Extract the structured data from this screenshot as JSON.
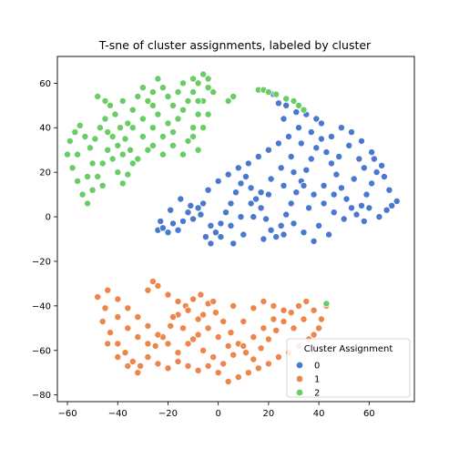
{
  "chart_data": {
    "type": "scatter",
    "title": "T-sne of cluster assignments, labeled by cluster",
    "xlabel": "",
    "ylabel": "",
    "xlim": [
      -64,
      78
    ],
    "ylim": [
      -83,
      72
    ],
    "xticks": [
      -60,
      -40,
      -20,
      0,
      20,
      40,
      60
    ],
    "yticks": [
      -80,
      -60,
      -40,
      -20,
      0,
      20,
      40,
      60
    ],
    "grid": false,
    "legend": {
      "title": "Cluster Assignment",
      "location": "lower-right",
      "entries": [
        "0",
        "1",
        "2"
      ]
    },
    "series": [
      {
        "name": "0",
        "color": "#4878d0",
        "points": [
          [
            -24,
            -6
          ],
          [
            -22,
            -5
          ],
          [
            -20,
            -7
          ],
          [
            -18,
            -3
          ],
          [
            -16,
            -6
          ],
          [
            -14,
            -2
          ],
          [
            -12,
            2
          ],
          [
            -10,
            -1
          ],
          [
            -8,
            4
          ],
          [
            -6,
            6
          ],
          [
            -5,
            -9
          ],
          [
            -3,
            -12
          ],
          [
            -1,
            -7
          ],
          [
            1,
            -3
          ],
          [
            3,
            2
          ],
          [
            5,
            6
          ],
          [
            7,
            11
          ],
          [
            9,
            15
          ],
          [
            11,
            18
          ],
          [
            13,
            13
          ],
          [
            15,
            8
          ],
          [
            17,
            4
          ],
          [
            19,
            -1
          ],
          [
            21,
            -6
          ],
          [
            23,
            -9
          ],
          [
            25,
            -4
          ],
          [
            27,
            1
          ],
          [
            29,
            6
          ],
          [
            31,
            11
          ],
          [
            33,
            16
          ],
          [
            35,
            21
          ],
          [
            37,
            26
          ],
          [
            39,
            31
          ],
          [
            41,
            35
          ],
          [
            43,
            29
          ],
          [
            45,
            24
          ],
          [
            47,
            19
          ],
          [
            49,
            13
          ],
          [
            51,
            8
          ],
          [
            53,
            4
          ],
          [
            55,
            1
          ],
          [
            57,
            5
          ],
          [
            59,
            10
          ],
          [
            61,
            15
          ],
          [
            63,
            20
          ],
          [
            65,
            23
          ],
          [
            67,
            3
          ],
          [
            69,
            5
          ],
          [
            71,
            7
          ],
          [
            61,
            29
          ],
          [
            57,
            34
          ],
          [
            53,
            38
          ],
          [
            49,
            40
          ],
          [
            45,
            36
          ],
          [
            41,
            42
          ],
          [
            37,
            38
          ],
          [
            33,
            33
          ],
          [
            29,
            27
          ],
          [
            25,
            22
          ],
          [
            21,
            17
          ],
          [
            17,
            11
          ],
          [
            13,
            6
          ],
          [
            9,
            0
          ],
          [
            5,
            -4
          ],
          [
            1,
            -9
          ],
          [
            -3,
            -4
          ],
          [
            -7,
            1
          ],
          [
            -11,
            5
          ],
          [
            -15,
            8
          ],
          [
            -19,
            3
          ],
          [
            -23,
            -2
          ],
          [
            -4,
            12
          ],
          [
            0,
            16
          ],
          [
            4,
            19
          ],
          [
            8,
            22
          ],
          [
            12,
            24
          ],
          [
            16,
            27
          ],
          [
            20,
            30
          ],
          [
            24,
            33
          ],
          [
            28,
            36
          ],
          [
            32,
            40
          ],
          [
            26,
            44
          ],
          [
            24,
            51
          ],
          [
            22,
            55
          ],
          [
            27,
            50
          ],
          [
            31,
            47
          ],
          [
            35,
            46
          ],
          [
            39,
            44
          ],
          [
            34,
            14
          ],
          [
            38,
            10
          ],
          [
            42,
            6
          ],
          [
            46,
            2
          ],
          [
            50,
            -1
          ],
          [
            54,
            17
          ],
          [
            58,
            22
          ],
          [
            62,
            26
          ],
          [
            66,
            18
          ],
          [
            68,
            12
          ],
          [
            40,
            -4
          ],
          [
            44,
            -8
          ],
          [
            38,
            -11
          ],
          [
            34,
            -7
          ],
          [
            30,
            -3
          ],
          [
            26,
            -8
          ],
          [
            18,
            -10
          ],
          [
            10,
            -8
          ],
          [
            6,
            -12
          ],
          [
            14,
            0
          ],
          [
            20,
            10
          ],
          [
            26,
            14
          ],
          [
            30,
            20
          ],
          [
            36,
            4
          ],
          [
            42,
            14
          ],
          [
            48,
            27
          ],
          [
            52,
            32
          ],
          [
            56,
            26
          ],
          [
            60,
            4
          ],
          [
            64,
            0
          ],
          [
            58,
            -2
          ],
          [
            46,
            10
          ]
        ]
      },
      {
        "name": "1",
        "color": "#ee854a",
        "points": [
          [
            -48,
            -36
          ],
          [
            -45,
            -41
          ],
          [
            -46,
            -47
          ],
          [
            -43,
            -52
          ],
          [
            -40,
            -57
          ],
          [
            -37,
            -61
          ],
          [
            -34,
            -65
          ],
          [
            -31,
            -67
          ],
          [
            -28,
            -63
          ],
          [
            -25,
            -58
          ],
          [
            -22,
            -54
          ],
          [
            -19,
            -49
          ],
          [
            -16,
            -44
          ],
          [
            -13,
            -40
          ],
          [
            -10,
            -37
          ],
          [
            -7,
            -35
          ],
          [
            -4,
            -39
          ],
          [
            -1,
            -43
          ],
          [
            2,
            -47
          ],
          [
            5,
            -52
          ],
          [
            8,
            -57
          ],
          [
            11,
            -61
          ],
          [
            14,
            -64
          ],
          [
            17,
            -59
          ],
          [
            20,
            -55
          ],
          [
            23,
            -51
          ],
          [
            26,
            -47
          ],
          [
            29,
            -43
          ],
          [
            32,
            -40
          ],
          [
            35,
            -38
          ],
          [
            38,
            -42
          ],
          [
            41,
            -46
          ],
          [
            43,
            -40
          ],
          [
            40,
            -50
          ],
          [
            36,
            -55
          ],
          [
            32,
            -58
          ],
          [
            28,
            -61
          ],
          [
            24,
            -63
          ],
          [
            20,
            -66
          ],
          [
            16,
            -68
          ],
          [
            12,
            -70
          ],
          [
            8,
            -72
          ],
          [
            4,
            -74
          ],
          [
            0,
            -70
          ],
          [
            -4,
            -67
          ],
          [
            -8,
            -69
          ],
          [
            -12,
            -67
          ],
          [
            -16,
            -65
          ],
          [
            -20,
            -68
          ],
          [
            -24,
            -66
          ],
          [
            -28,
            -33
          ],
          [
            -26,
            -29
          ],
          [
            -24,
            -31
          ],
          [
            -20,
            -35
          ],
          [
            -16,
            -38
          ],
          [
            -12,
            -42
          ],
          [
            -8,
            -46
          ],
          [
            -4,
            -50
          ],
          [
            0,
            -54
          ],
          [
            4,
            -58
          ],
          [
            -44,
            -33
          ],
          [
            -40,
            -37
          ],
          [
            -36,
            -41
          ],
          [
            -32,
            -45
          ],
          [
            -28,
            -49
          ],
          [
            -24,
            -53
          ],
          [
            -20,
            -57
          ],
          [
            -16,
            -61
          ],
          [
            -12,
            -57
          ],
          [
            -8,
            -53
          ],
          [
            -40,
            -45
          ],
          [
            -36,
            -50
          ],
          [
            -32,
            -54
          ],
          [
            -28,
            -57
          ],
          [
            -44,
            -57
          ],
          [
            -40,
            -63
          ],
          [
            -36,
            -67
          ],
          [
            -32,
            -70
          ],
          [
            -18,
            -45
          ],
          [
            -14,
            -50
          ],
          [
            -10,
            -55
          ],
          [
            -6,
            -60
          ],
          [
            -2,
            -63
          ],
          [
            2,
            -66
          ],
          [
            6,
            -62
          ],
          [
            10,
            -58
          ],
          [
            14,
            -54
          ],
          [
            18,
            -50
          ],
          [
            22,
            -46
          ],
          [
            26,
            -42
          ],
          [
            30,
            -50
          ],
          [
            34,
            -46
          ],
          [
            38,
            -53
          ],
          [
            10,
            -47
          ],
          [
            14,
            -41
          ],
          [
            18,
            -38
          ],
          [
            22,
            -40
          ],
          [
            6,
            -40
          ],
          [
            -2,
            -38
          ],
          [
            -6,
            -44
          ]
        ]
      },
      {
        "name": "2",
        "color": "#6acc64",
        "points": [
          [
            -60,
            28
          ],
          [
            -58,
            22
          ],
          [
            -56,
            16
          ],
          [
            -54,
            10
          ],
          [
            -52,
            6
          ],
          [
            -50,
            12
          ],
          [
            -48,
            18
          ],
          [
            -46,
            24
          ],
          [
            -44,
            30
          ],
          [
            -42,
            26
          ],
          [
            -40,
            20
          ],
          [
            -38,
            15
          ],
          [
            -36,
            19
          ],
          [
            -34,
            24
          ],
          [
            -35,
            30
          ],
          [
            -37,
            35
          ],
          [
            -39,
            40
          ],
          [
            -41,
            46
          ],
          [
            -43,
            50
          ],
          [
            -45,
            44
          ],
          [
            -47,
            40
          ],
          [
            -49,
            35
          ],
          [
            -51,
            31
          ],
          [
            -53,
            36
          ],
          [
            -55,
            41
          ],
          [
            -57,
            38
          ],
          [
            -59,
            34
          ],
          [
            -48,
            54
          ],
          [
            -45,
            52
          ],
          [
            -38,
            52
          ],
          [
            -34,
            48
          ],
          [
            -30,
            44
          ],
          [
            -26,
            40
          ],
          [
            -22,
            36
          ],
          [
            -18,
            32
          ],
          [
            -14,
            28
          ],
          [
            -12,
            34
          ],
          [
            -10,
            40
          ],
          [
            -8,
            46
          ],
          [
            -6,
            52
          ],
          [
            -4,
            58
          ],
          [
            -2,
            56
          ],
          [
            -4,
            62
          ],
          [
            -6,
            64
          ],
          [
            -8,
            60
          ],
          [
            -10,
            56
          ],
          [
            -12,
            52
          ],
          [
            -14,
            48
          ],
          [
            -16,
            44
          ],
          [
            -18,
            50
          ],
          [
            -20,
            54
          ],
          [
            -22,
            58
          ],
          [
            -24,
            62
          ],
          [
            -26,
            56
          ],
          [
            -28,
            52
          ],
          [
            -30,
            58
          ],
          [
            -32,
            54
          ],
          [
            -34,
            40
          ],
          [
            -30,
            36
          ],
          [
            -26,
            32
          ],
          [
            -22,
            28
          ],
          [
            -20,
            42
          ],
          [
            -24,
            46
          ],
          [
            -28,
            30
          ],
          [
            -32,
            26
          ],
          [
            -36,
            42
          ],
          [
            -40,
            32
          ],
          [
            -44,
            38
          ],
          [
            -50,
            24
          ],
          [
            -56,
            28
          ],
          [
            -52,
            18
          ],
          [
            -46,
            14
          ],
          [
            -42,
            36
          ],
          [
            -38,
            28
          ],
          [
            -16,
            56
          ],
          [
            -14,
            60
          ],
          [
            -10,
            62
          ],
          [
            -8,
            30
          ],
          [
            -10,
            36
          ],
          [
            -6,
            40
          ],
          [
            -4,
            46
          ],
          [
            -8,
            52
          ],
          [
            -18,
            38
          ],
          [
            -26,
            50
          ],
          [
            4,
            52
          ],
          [
            6,
            54
          ],
          [
            16,
            57
          ],
          [
            18,
            57
          ],
          [
            20,
            56
          ],
          [
            23,
            55
          ],
          [
            27,
            53
          ],
          [
            30,
            52
          ],
          [
            32,
            50
          ],
          [
            34,
            48
          ],
          [
            43,
            -39
          ]
        ]
      }
    ]
  }
}
